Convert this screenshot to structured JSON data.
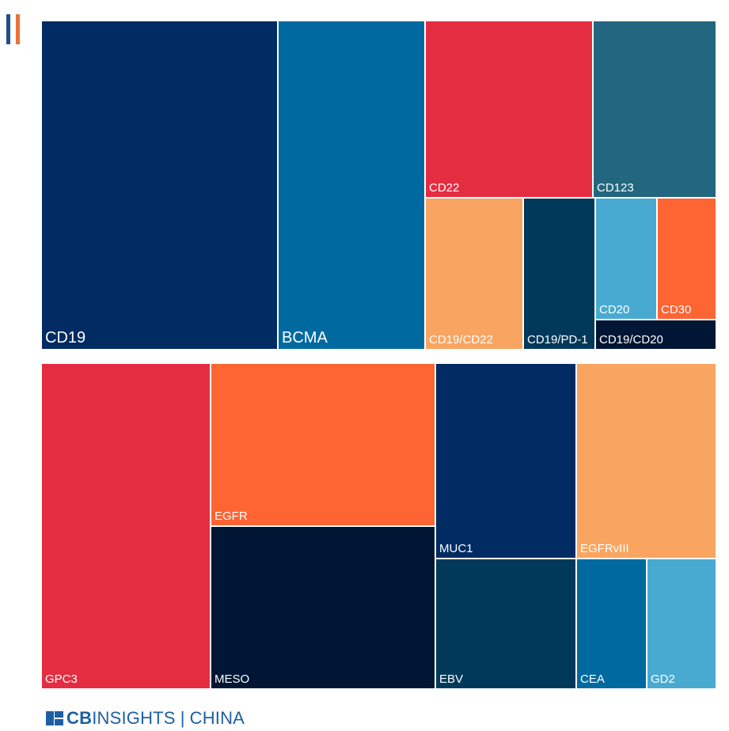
{
  "colors": {
    "navy": "#002c63",
    "blue": "#006aa0",
    "red": "#e52d41",
    "teal": "#22677f",
    "peach": "#f9a561",
    "dark_teal": "#01395a",
    "light_blue": "#48aad1",
    "orange": "#ff6433",
    "midnight": "#011634",
    "accent_blue": "#1d5fa5"
  },
  "chart_data": [
    {
      "type": "treemap",
      "title": "",
      "tiles": [
        {
          "label": "CD19",
          "color": "#002c63"
        },
        {
          "label": "BCMA",
          "color": "#006aa0"
        },
        {
          "label": "CD22",
          "color": "#e52d41"
        },
        {
          "label": "CD123",
          "color": "#22677f"
        },
        {
          "label": "CD19/CD22",
          "color": "#f9a561"
        },
        {
          "label": "CD19/PD-1",
          "color": "#01395a"
        },
        {
          "label": "CD20",
          "color": "#48aad1"
        },
        {
          "label": "CD30",
          "color": "#ff6433"
        },
        {
          "label": "CD19/CD20",
          "color": "#011634"
        }
      ]
    },
    {
      "type": "treemap",
      "title": "",
      "tiles": [
        {
          "label": "GPC3",
          "color": "#e52d41"
        },
        {
          "label": "EGFR",
          "color": "#ff6433"
        },
        {
          "label": "MESO",
          "color": "#011634"
        },
        {
          "label": "MUC1",
          "color": "#002c63"
        },
        {
          "label": "EBV",
          "color": "#01395a"
        },
        {
          "label": "EGFRvIII",
          "color": "#f9a561"
        },
        {
          "label": "CEA",
          "color": "#006aa0"
        },
        {
          "label": "GD2",
          "color": "#48aad1"
        }
      ]
    }
  ],
  "footer": {
    "logo_cb": "CB",
    "logo_insights": "INSIGHTS",
    "logo_sep": "|",
    "logo_china": "CHINA"
  }
}
